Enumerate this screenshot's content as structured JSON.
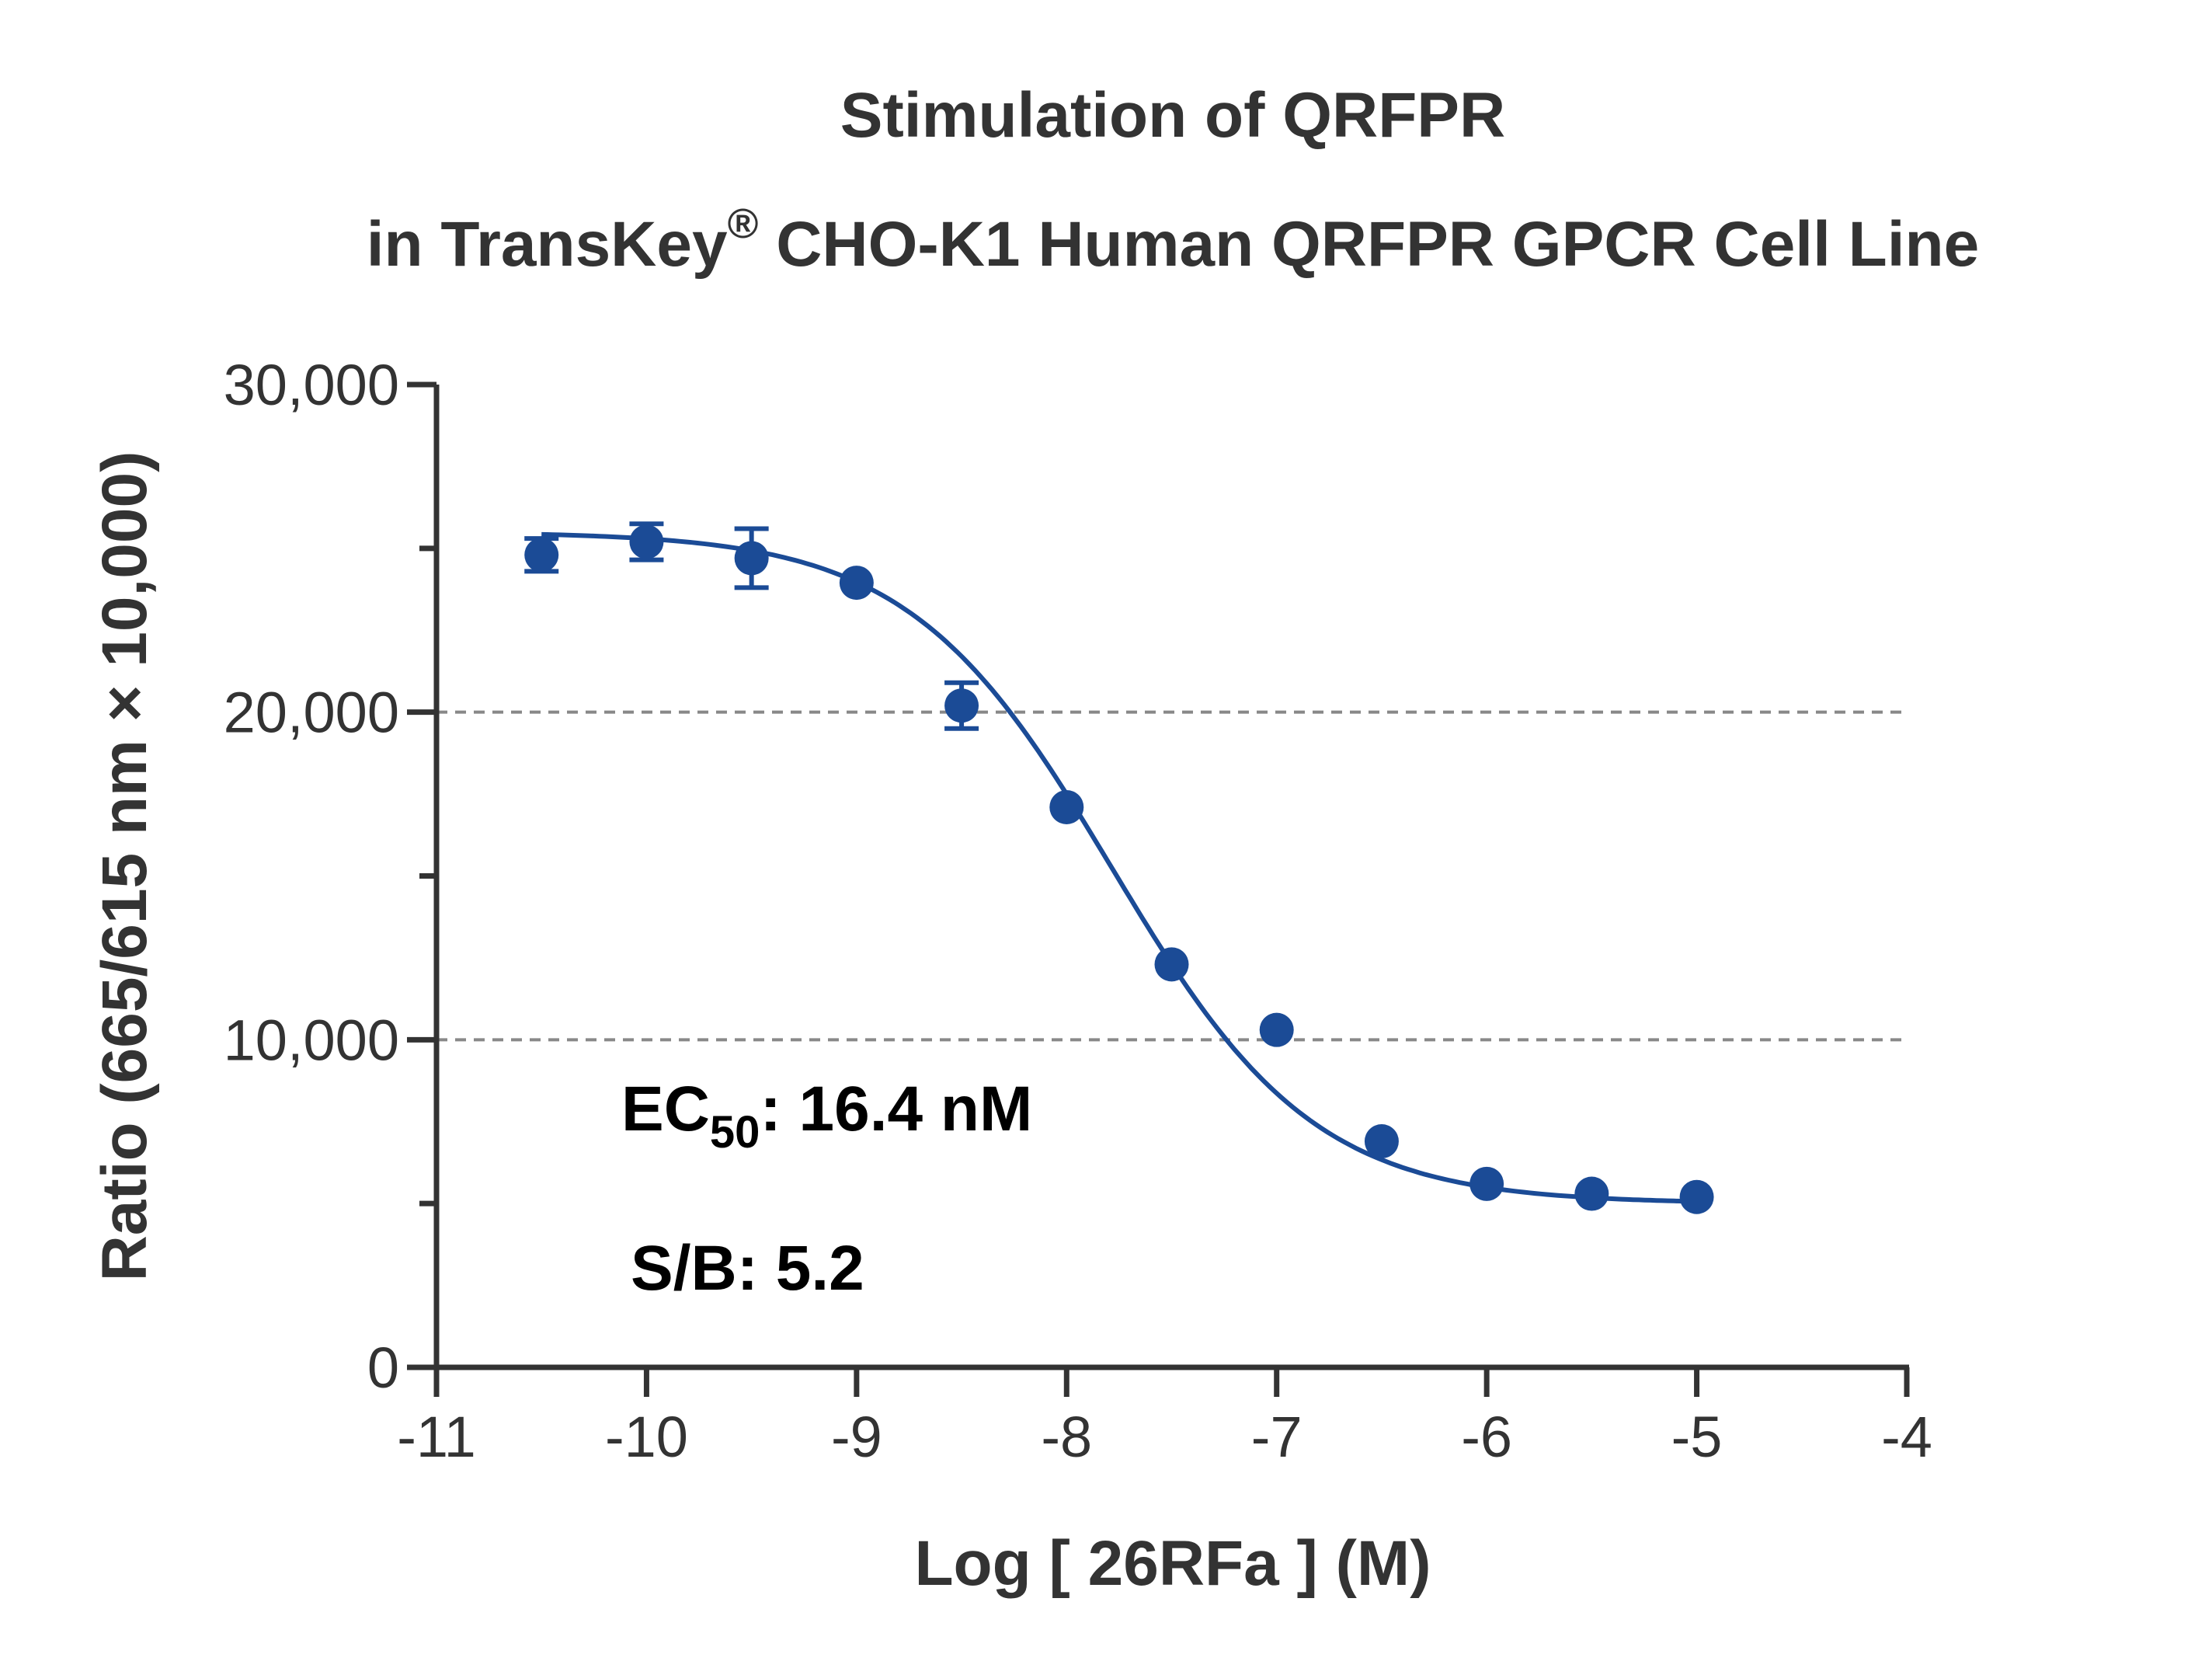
{
  "chart_data": {
    "type": "scatter",
    "title_line1": "Stimulation of  QRFPR",
    "title_line2_pre": "in TransKey",
    "title_line2_sup": "®",
    "title_line2_post": " CHO-K1 Human QRFPR GPCR Cell Line",
    "xlabel": "Log [ 26RFa ]  (M)",
    "ylabel": "Ratio (665/615 nm × 10,000)",
    "xlim": [
      -11,
      -4
    ],
    "ylim": [
      0,
      30000
    ],
    "x_ticks": [
      -11,
      -10,
      -9,
      -8,
      -7,
      -6,
      -5,
      -4
    ],
    "x_tick_labels": [
      "-11",
      "-10",
      "-9",
      "-8",
      "-7",
      "-6",
      "-5",
      "-4"
    ],
    "y_major_ticks": [
      0,
      10000,
      20000,
      30000
    ],
    "y_tick_labels": [
      "0",
      "10,000",
      "20,000",
      "30,000"
    ],
    "y_minor_ticks": [
      5000,
      15000,
      25000
    ],
    "gridlines_y": [
      10000,
      20000
    ],
    "color": "#1b4b96",
    "points": [
      {
        "x": -10.5,
        "y": 24800,
        "err": 500
      },
      {
        "x": -10.0,
        "y": 25200,
        "err": 550
      },
      {
        "x": -9.5,
        "y": 24700,
        "err": 900
      },
      {
        "x": -9.0,
        "y": 23950,
        "err": 0
      },
      {
        "x": -8.5,
        "y": 20200,
        "err": 700
      },
      {
        "x": -8.0,
        "y": 17100,
        "err": 0
      },
      {
        "x": -7.5,
        "y": 12300,
        "err": 0
      },
      {
        "x": -7.0,
        "y": 10300,
        "err": 0
      },
      {
        "x": -6.5,
        "y": 6900,
        "err": 0
      },
      {
        "x": -6.0,
        "y": 5600,
        "err": 0
      },
      {
        "x": -5.5,
        "y": 5300,
        "err": 0
      },
      {
        "x": -5.0,
        "y": 5200,
        "err": 0
      }
    ],
    "fit": {
      "top": 25500,
      "bottom": 5000,
      "log_ec50": -7.785,
      "hill_slope": -0.9
    },
    "ec50_label": "EC",
    "ec50_sub": "50",
    "ec50_value": ": 16.4 nM",
    "sb_label": "S/B: 5.2"
  }
}
